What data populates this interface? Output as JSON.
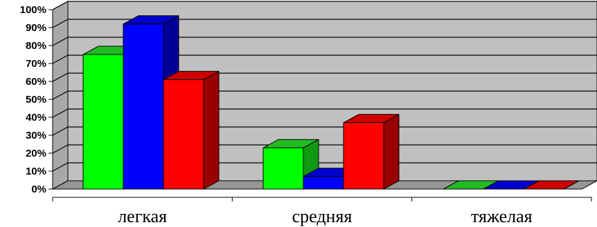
{
  "chart_data": {
    "type": "bar",
    "categories": [
      "легкая",
      "средняя",
      "тяжелая"
    ],
    "series": [
      {
        "values": [
          75,
          23,
          0
        ]
      },
      {
        "values": [
          92,
          7,
          0
        ]
      },
      {
        "values": [
          61,
          37,
          0
        ]
      }
    ],
    "colors": [
      {
        "front": "#00ff00",
        "top": "#22bb22",
        "side": "#119911"
      },
      {
        "front": "#0000ff",
        "top": "#0000cc",
        "side": "#000099"
      },
      {
        "front": "#ff0000",
        "top": "#cc0000",
        "side": "#990000"
      }
    ],
    "y_ticks": [
      "0%",
      "10%",
      "20%",
      "30%",
      "40%",
      "50%",
      "60%",
      "70%",
      "80%",
      "90%",
      "100%"
    ],
    "ylim": [
      0,
      100
    ],
    "grid": true,
    "legend": "none",
    "style": "3d-clustered-column",
    "wall_color": "#c0c0c0",
    "floor_color": "#969696"
  }
}
